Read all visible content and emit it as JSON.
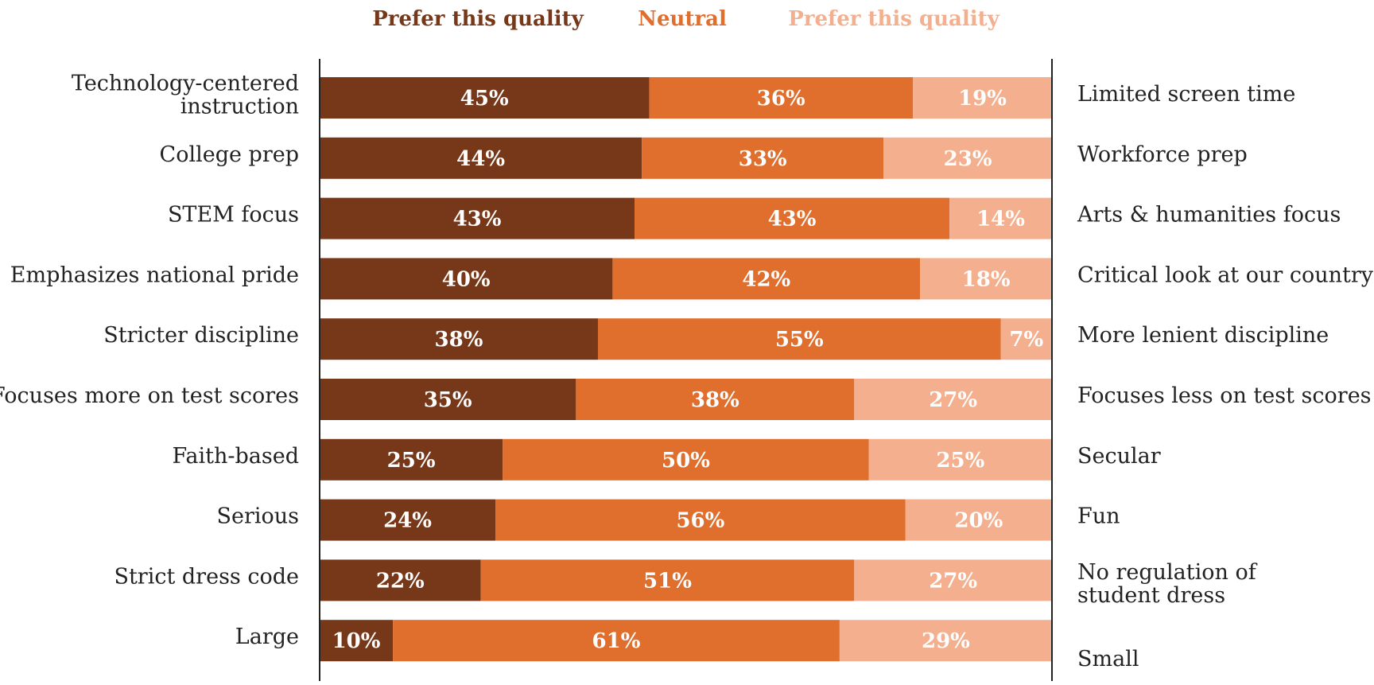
{
  "legend": {
    "left": "Prefer this quality",
    "neutral": "Neutral",
    "right": "Prefer this quality"
  },
  "colors": {
    "left": "#773819",
    "neutral": "#E06E2C",
    "right": "#F4B08E",
    "text": "#222222"
  },
  "chart_data": {
    "type": "bar",
    "orientation": "horizontal",
    "stacked": true,
    "normalized_percent": true,
    "xlim": [
      0,
      100
    ],
    "series": [
      {
        "name": "Prefer this quality",
        "values": [
          45,
          44,
          43,
          40,
          38,
          35,
          25,
          24,
          22,
          10
        ]
      },
      {
        "name": "Neutral",
        "values": [
          36,
          33,
          43,
          42,
          55,
          38,
          50,
          56,
          51,
          61
        ]
      },
      {
        "name": "Prefer this quality",
        "values": [
          19,
          23,
          14,
          18,
          7,
          27,
          25,
          20,
          27,
          29
        ]
      }
    ],
    "rows": [
      {
        "left": [
          "Technology-centered",
          "instruction"
        ],
        "right": [
          "Limited screen time"
        ]
      },
      {
        "left": [
          "College prep"
        ],
        "right": [
          "Workforce prep"
        ]
      },
      {
        "left": [
          "STEM focus"
        ],
        "right": [
          "Arts & humanities focus"
        ]
      },
      {
        "left": [
          "Emphasizes national pride"
        ],
        "right": [
          "Critical look at our country"
        ]
      },
      {
        "left": [
          "Stricter discipline"
        ],
        "right": [
          "More lenient discipline"
        ]
      },
      {
        "left": [
          "Focuses more on test scores"
        ],
        "right": [
          "Focuses less on test scores"
        ]
      },
      {
        "left": [
          "Faith-based"
        ],
        "right": [
          "Secular"
        ]
      },
      {
        "left": [
          "Serious"
        ],
        "right": [
          "Fun"
        ]
      },
      {
        "left": [
          "Strict dress code"
        ],
        "right": [
          "No regulation of",
          "student dress"
        ]
      },
      {
        "left": [
          "Large"
        ],
        "right": [
          "Small"
        ]
      }
    ]
  }
}
